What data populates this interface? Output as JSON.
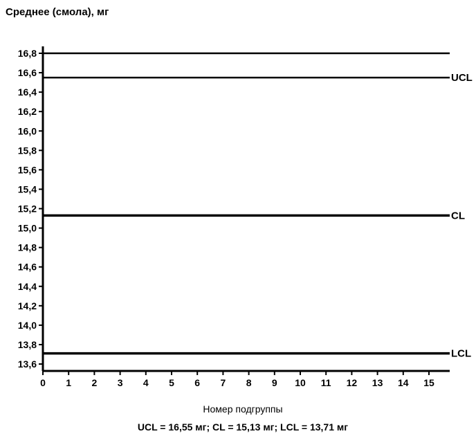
{
  "chart_data": {
    "type": "line",
    "title": "",
    "ylabel": "Среднее (смола), мг",
    "xlabel": "Номер подгруппы",
    "caption": "UCL = 16,55 мг; CL = 15,13 мг; LCL = 13,71 мг",
    "ylim": [
      13.6,
      16.8
    ],
    "xlim": [
      0,
      15
    ],
    "y_ticks": [
      "16,8",
      "16,6",
      "16,4",
      "16,2",
      "16,0",
      "15,8",
      "15,6",
      "15,4",
      "15,2",
      "15,0",
      "14,8",
      "14,6",
      "14,4",
      "14,2",
      "14,0",
      "13,8",
      "13,6"
    ],
    "x_ticks": [
      "0",
      "1",
      "2",
      "3",
      "4",
      "5",
      "6",
      "7",
      "8",
      "9",
      "10",
      "11",
      "12",
      "13",
      "14",
      "15"
    ],
    "reference_lines": [
      {
        "name": "",
        "y": 16.8
      },
      {
        "name": "UCL",
        "y": 16.55
      },
      {
        "name": "CL",
        "y": 15.13
      },
      {
        "name": "LCL",
        "y": 13.71
      }
    ],
    "grid": false,
    "legend": "none"
  }
}
